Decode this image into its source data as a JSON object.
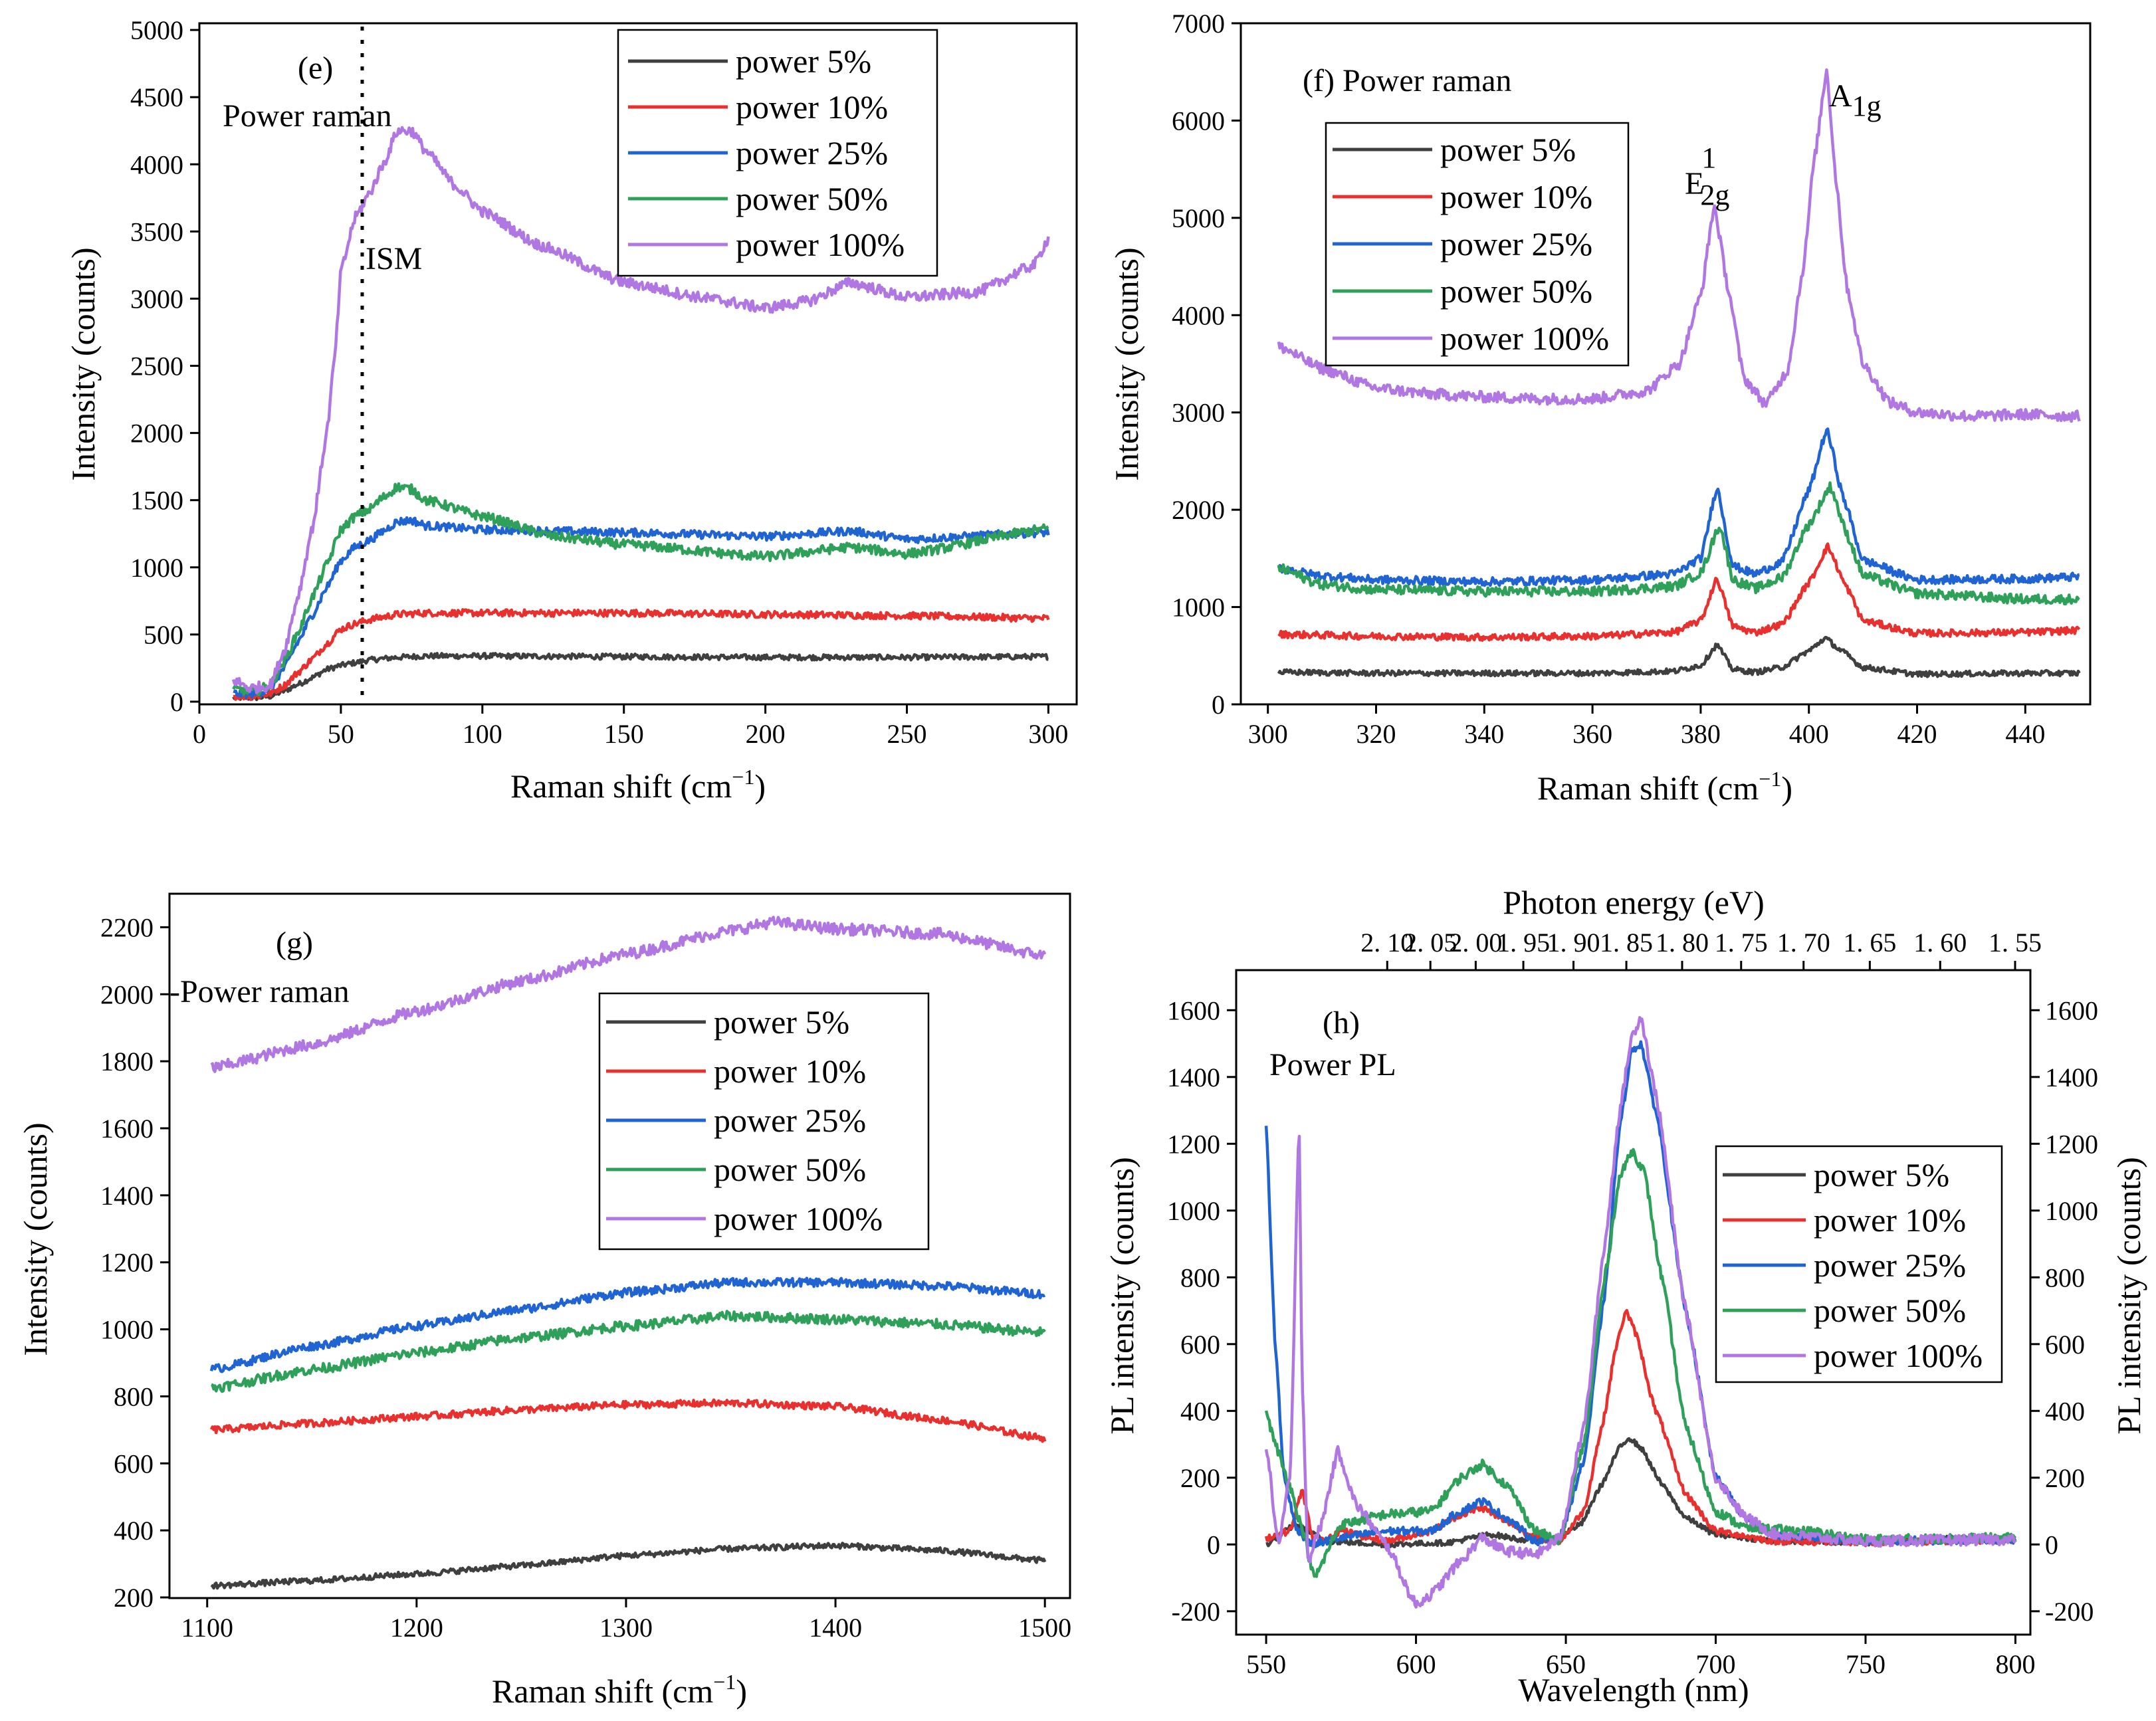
{
  "colors": {
    "power_5": "#3f3f3f",
    "power_10": "#e8302e",
    "power_25": "#1f64d2",
    "power_50": "#2fa05a",
    "power_100": "#b077e2"
  },
  "chart_data": [
    {
      "id": "e",
      "type": "line",
      "xlabel": "Raman shift (cm",
      "xlabel_sup": "−1",
      "xlabel_close": ")",
      "ylabel": "Intensity (counts)",
      "xlim": [
        0,
        310
      ],
      "ylim": [
        -20,
        5050
      ],
      "xticks": [
        "0",
        "50",
        "100",
        "150",
        "200",
        "250",
        "300"
      ],
      "yticks": [
        "0",
        "500",
        "1000",
        "1500",
        "2000",
        "2500",
        "3000",
        "3500",
        "4000",
        "4500",
        "5000"
      ],
      "annotations": {
        "panel": "(e)",
        "title": "Power raman",
        "marker": "ISM",
        "marker_x": 57
      },
      "legend_labels": [
        "power 5%",
        "power 10%",
        "power 25%",
        "power 50%",
        "power 100%"
      ],
      "series": [
        {
          "name": "power 5%",
          "color_key": "power_5",
          "x": [
            12,
            20,
            25,
            30,
            35,
            40,
            45,
            50,
            55,
            60,
            65,
            70,
            80,
            100,
            150,
            200,
            250,
            300
          ],
          "y": [
            30,
            30,
            40,
            80,
            130,
            180,
            240,
            270,
            290,
            310,
            320,
            330,
            340,
            340,
            335,
            330,
            330,
            335
          ]
        },
        {
          "name": "power 10%",
          "color_key": "power_10",
          "x": [
            12,
            20,
            25,
            30,
            35,
            40,
            45,
            50,
            55,
            60,
            65,
            70,
            80,
            100,
            150,
            200,
            250,
            300
          ],
          "y": [
            40,
            40,
            60,
            120,
            220,
            320,
            430,
            540,
            580,
            610,
            630,
            650,
            660,
            660,
            660,
            650,
            640,
            620
          ]
        },
        {
          "name": "power 25%",
          "color_key": "power_25",
          "x": [
            12,
            20,
            25,
            30,
            35,
            40,
            45,
            50,
            55,
            60,
            65,
            70,
            75,
            80,
            100,
            150,
            200,
            230,
            250,
            300
          ],
          "y": [
            60,
            60,
            100,
            250,
            450,
            650,
            850,
            1050,
            1150,
            1200,
            1270,
            1340,
            1350,
            1310,
            1280,
            1260,
            1230,
            1270,
            1210,
            1260
          ]
        },
        {
          "name": "power 50%",
          "color_key": "power_50",
          "x": [
            12,
            20,
            25,
            30,
            35,
            40,
            45,
            50,
            55,
            60,
            65,
            70,
            75,
            80,
            100,
            125,
            150,
            200,
            230,
            250,
            300
          ],
          "y": [
            90,
            80,
            120,
            300,
            520,
            780,
            1020,
            1280,
            1380,
            1430,
            1520,
            1600,
            1580,
            1500,
            1380,
            1230,
            1170,
            1080,
            1150,
            1100,
            1290
          ]
        },
        {
          "name": "power 100%",
          "color_key": "power_100",
          "x": [
            12,
            18,
            25,
            30,
            35,
            40,
            45,
            48,
            50,
            55,
            60,
            65,
            70,
            75,
            80,
            90,
            100,
            120,
            150,
            180,
            200,
            215,
            230,
            250,
            275,
            295,
            300
          ],
          "y": [
            160,
            100,
            120,
            380,
            800,
            1300,
            2000,
            2600,
            3200,
            3600,
            3780,
            4000,
            4250,
            4250,
            4100,
            3850,
            3650,
            3400,
            3120,
            3000,
            2930,
            2980,
            3120,
            3010,
            3050,
            3250,
            3450
          ]
        }
      ]
    },
    {
      "id": "f",
      "type": "line",
      "xlabel": "Raman shift (cm",
      "xlabel_sup": "−1",
      "xlabel_close": ")",
      "ylabel": "Intensity (counts)",
      "xlim": [
        295,
        452
      ],
      "ylim": [
        0,
        7000
      ],
      "xticks": [
        "300",
        "320",
        "340",
        "360",
        "380",
        "400",
        "420",
        "440"
      ],
      "yticks": [
        "0",
        "1000",
        "2000",
        "3000",
        "4000",
        "5000",
        "6000",
        "7000"
      ],
      "annotations": {
        "title": "(f) Power raman",
        "peak1": "E",
        "peak1_sup": "1",
        "peak1_sub": "2g",
        "peak2": "A",
        "peak2_sub": "1g"
      },
      "legend_labels": [
        "power 5%",
        "power 10%",
        "power 25%",
        "power 50%",
        "power 100%"
      ],
      "series": [
        {
          "name": "power 5%",
          "color_key": "power_5",
          "x": [
            302,
            320,
            340,
            360,
            375,
            380,
            383,
            386,
            390,
            395,
            400,
            403,
            406,
            410,
            420,
            440,
            450
          ],
          "y": [
            330,
            320,
            320,
            320,
            340,
            400,
            610,
            360,
            330,
            380,
            550,
            680,
            550,
            380,
            310,
            320,
            320
          ]
        },
        {
          "name": "power 10%",
          "color_key": "power_10",
          "x": [
            302,
            320,
            340,
            360,
            375,
            380,
            383,
            386,
            390,
            395,
            400,
            403.5,
            407,
            410,
            420,
            440,
            450
          ],
          "y": [
            720,
            700,
            690,
            700,
            740,
            860,
            1290,
            800,
            740,
            820,
            1250,
            1620,
            1200,
            860,
            730,
            740,
            760
          ]
        },
        {
          "name": "power 25%",
          "color_key": "power_25",
          "x": [
            302,
            310,
            320,
            340,
            360,
            375,
            380,
            383,
            386,
            390,
            395,
            400,
            403.3,
            406.5,
            410,
            420,
            440,
            450
          ],
          "y": [
            1400,
            1320,
            1280,
            1260,
            1280,
            1340,
            1500,
            2230,
            1420,
            1340,
            1460,
            2200,
            2820,
            2100,
            1480,
            1280,
            1290,
            1310
          ]
        },
        {
          "name": "power 50%",
          "color_key": "power_50",
          "x": [
            302,
            310,
            320,
            340,
            360,
            375,
            380,
            383.5,
            386,
            390,
            395,
            400,
            404,
            407,
            410,
            420,
            440,
            450
          ],
          "y": [
            1400,
            1230,
            1180,
            1160,
            1160,
            1210,
            1350,
            1840,
            1280,
            1190,
            1300,
            1850,
            2240,
            1750,
            1330,
            1140,
            1080,
            1080
          ]
        },
        {
          "name": "power 100%",
          "color_key": "power_100",
          "x": [
            302,
            310,
            320,
            330,
            340,
            350,
            360,
            370,
            376,
            380,
            382.5,
            385,
            388,
            392,
            396,
            399,
            401,
            403.3,
            405,
            407,
            410,
            415,
            420,
            430,
            440,
            450
          ],
          "y": [
            3680,
            3450,
            3250,
            3190,
            3160,
            3140,
            3140,
            3220,
            3500,
            4200,
            5120,
            4300,
            3350,
            3090,
            3420,
            4500,
            5600,
            6520,
            5400,
            4300,
            3500,
            3100,
            3000,
            2960,
            2980,
            2960
          ]
        }
      ]
    },
    {
      "id": "g",
      "type": "line",
      "xlabel": "Raman shift (cm",
      "xlabel_sup": "−1",
      "xlabel_close": ")",
      "ylabel": "Intensity (counts)",
      "xlim": [
        1082,
        1512
      ],
      "ylim": [
        198,
        2300
      ],
      "xticks": [
        "1100",
        "1200",
        "1300",
        "1400",
        "1500"
      ],
      "yticks": [
        "200",
        "400",
        "600",
        "800",
        "1000",
        "1200",
        "1400",
        "1600",
        "1800",
        "2000",
        "2200"
      ],
      "annotations": {
        "panel": "(g)",
        "title": "-Power raman"
      },
      "legend_labels": [
        "power 5%",
        "power 10%",
        "power 25%",
        "power 50%",
        "power 100%"
      ],
      "series": [
        {
          "name": "power 5%",
          "color_key": "power_5",
          "x": [
            1102,
            1150,
            1200,
            1250,
            1300,
            1350,
            1400,
            1450,
            1500
          ],
          "y": [
            235,
            250,
            270,
            295,
            325,
            345,
            355,
            340,
            310
          ]
        },
        {
          "name": "power 10%",
          "color_key": "power_10",
          "x": [
            1102,
            1150,
            1200,
            1250,
            1300,
            1350,
            1400,
            1450,
            1500
          ],
          "y": [
            700,
            720,
            740,
            760,
            775,
            780,
            770,
            730,
            675
          ]
        },
        {
          "name": "power 25%",
          "color_key": "power_25",
          "x": [
            1102,
            1150,
            1200,
            1250,
            1300,
            1350,
            1400,
            1450,
            1500
          ],
          "y": [
            880,
            950,
            1010,
            1060,
            1110,
            1140,
            1140,
            1130,
            1105
          ]
        },
        {
          "name": "power 50%",
          "color_key": "power_50",
          "x": [
            1102,
            1150,
            1200,
            1250,
            1300,
            1350,
            1400,
            1450,
            1500
          ],
          "y": [
            825,
            880,
            930,
            975,
            1010,
            1040,
            1030,
            1015,
            990
          ]
        },
        {
          "name": "power 100%",
          "color_key": "power_100",
          "x": [
            1102,
            1150,
            1200,
            1250,
            1300,
            1350,
            1370,
            1400,
            1450,
            1500
          ],
          "y": [
            1780,
            1850,
            1950,
            2040,
            2120,
            2190,
            2215,
            2195,
            2180,
            2115
          ]
        }
      ]
    },
    {
      "id": "h",
      "type": "line",
      "xlabel": "Wavelength (nm)",
      "ylabel": "PL intensity (counts)",
      "ylabel_right": "PL intensity (counts)",
      "top_label": "Photon energy (eV)",
      "xlim": [
        540,
        805
      ],
      "ylim": [
        -270,
        1720
      ],
      "xticks": [
        "550",
        "600",
        "650",
        "700",
        "750",
        "800"
      ],
      "yticks": [
        "-200",
        "0",
        "200",
        "400",
        "600",
        "800",
        "1000",
        "1200",
        "1400",
        "1600"
      ],
      "top_ticks": [
        "2. 10",
        "2. 05",
        "2. 00",
        "1. 95",
        "1. 90",
        "1. 85",
        "1. 80",
        "1. 75",
        "1. 70",
        "1. 65",
        "1. 60",
        "1. 55"
      ],
      "annotations": {
        "panel": "(h)",
        "title": "Power PL"
      },
      "legend_labels": [
        "power 5%",
        "power 10%",
        "power 25%",
        "power 50%",
        "power 100%"
      ],
      "series": [
        {
          "name": "power 5%",
          "color_key": "power_5",
          "x": [
            550,
            560,
            570,
            590,
            610,
            625,
            635,
            645,
            655,
            662,
            668,
            671,
            675,
            682,
            690,
            700,
            720,
            750,
            780,
            800
          ],
          "y": [
            0,
            60,
            10,
            0,
            5,
            30,
            15,
            10,
            60,
            180,
            290,
            320,
            290,
            180,
            80,
            30,
            10,
            5,
            20,
            15
          ]
        },
        {
          "name": "power 10%",
          "color_key": "power_10",
          "x": [
            550,
            558,
            562,
            566,
            575,
            590,
            605,
            615,
            622,
            630,
            640,
            648,
            656,
            662,
            667,
            670,
            673,
            680,
            690,
            700,
            720,
            750,
            800
          ],
          "y": [
            20,
            40,
            160,
            0,
            40,
            10,
            40,
            90,
            110,
            70,
            20,
            10,
            100,
            350,
            600,
            700,
            640,
            400,
            150,
            40,
            10,
            5,
            15
          ]
        },
        {
          "name": "power 25%",
          "color_key": "power_25",
          "x": [
            550,
            553,
            556,
            560,
            565,
            575,
            590,
            605,
            615,
            622,
            630,
            640,
            648,
            656,
            663,
            668,
            672,
            675,
            680,
            690,
            700,
            710,
            720,
            750,
            800
          ],
          "y": [
            1250,
            600,
            200,
            50,
            0,
            20,
            40,
            40,
            100,
            130,
            80,
            10,
            20,
            250,
            750,
            1250,
            1480,
            1500,
            1300,
            700,
            200,
            80,
            30,
            10,
            15
          ]
        },
        {
          "name": "power 50%",
          "color_key": "power_50",
          "x": [
            550,
            553,
            557,
            562,
            566,
            575,
            590,
            605,
            615,
            622,
            630,
            640,
            648,
            656,
            663,
            668,
            672,
            676,
            682,
            690,
            700,
            710,
            730,
            750,
            800
          ],
          "y": [
            400,
            300,
            200,
            50,
            -100,
            60,
            90,
            100,
            200,
            240,
            180,
            40,
            10,
            300,
            800,
            1100,
            1180,
            1120,
            800,
            350,
            100,
            50,
            40,
            15,
            20
          ]
        },
        {
          "name": "power 100%",
          "color_key": "power_100",
          "x": [
            550,
            554,
            558,
            561,
            562,
            564,
            568,
            574,
            580,
            590,
            600,
            605,
            615,
            622,
            630,
            640,
            648,
            656,
            663,
            668,
            672,
            675,
            680,
            690,
            700,
            710,
            720,
            750,
            800
          ],
          "y": [
            300,
            0,
            200,
            1250,
            500,
            -50,
            50,
            280,
            120,
            0,
            -180,
            -150,
            -50,
            20,
            -20,
            -30,
            20,
            350,
            900,
            1300,
            1520,
            1580,
            1350,
            700,
            200,
            80,
            30,
            10,
            15
          ]
        }
      ]
    }
  ]
}
